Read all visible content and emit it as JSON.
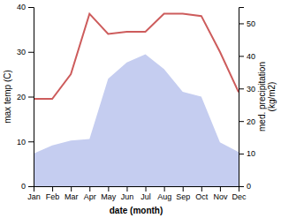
{
  "chart_data": {
    "type": "line",
    "categories": [
      "Jan",
      "Feb",
      "Mar",
      "Apr",
      "May",
      "Jun",
      "Jul",
      "Aug",
      "Sep",
      "Oct",
      "Nov",
      "Dec"
    ],
    "xlabel": "date (month)",
    "ylabel": "max temp (C)",
    "y2label": "med. precipitation\n(kg/m2)",
    "ylim": [
      0,
      40
    ],
    "yticks": [
      0,
      10,
      20,
      30,
      40
    ],
    "y2lim": [
      0,
      55
    ],
    "y2ticks": [
      0,
      10,
      20,
      30,
      40,
      50
    ],
    "grid": false,
    "series": [
      {
        "type": "area",
        "axis": "y2",
        "color": "#c5cdf0",
        "values": [
          10.0,
          12.5,
          14.0,
          14.5,
          33.0,
          38.0,
          40.5,
          36.0,
          29.0,
          27.5,
          13.5,
          10.5
        ]
      },
      {
        "type": "line",
        "color": "#cd5c5c",
        "values": [
          19.5,
          19.5,
          25.0,
          38.5,
          34.0,
          34.5,
          34.5,
          38.5,
          38.5,
          38.0,
          30.0,
          21.0
        ]
      }
    ]
  }
}
